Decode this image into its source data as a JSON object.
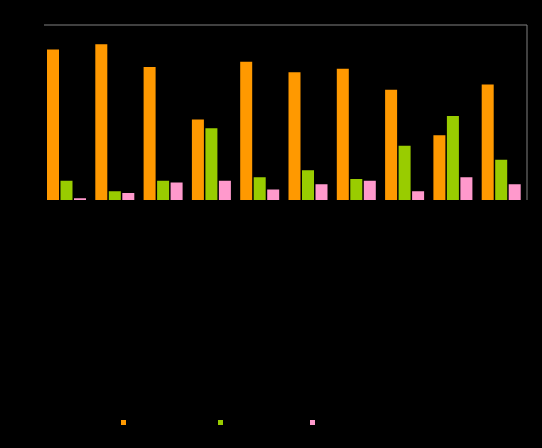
{
  "chart_data": {
    "type": "bar",
    "title": "",
    "xlabel": "",
    "ylabel": "",
    "categories": [
      "",
      "",
      "",
      "",
      "",
      "",
      "",
      "",
      "",
      ""
    ],
    "ylim": [
      0,
      100
    ],
    "grid": false,
    "legend_position": "bottom",
    "series": [
      {
        "color": "#FF9900",
        "values": [
          86,
          89,
          76,
          46,
          79,
          73,
          75,
          63,
          37,
          66
        ]
      },
      {
        "color": "#99CC00",
        "values": [
          11,
          5,
          11,
          41,
          13,
          17,
          12,
          31,
          48,
          23
        ]
      },
      {
        "color": "#FF99CC",
        "values": [
          1,
          4,
          10,
          11,
          6,
          9,
          11,
          5,
          13,
          9
        ]
      }
    ]
  }
}
